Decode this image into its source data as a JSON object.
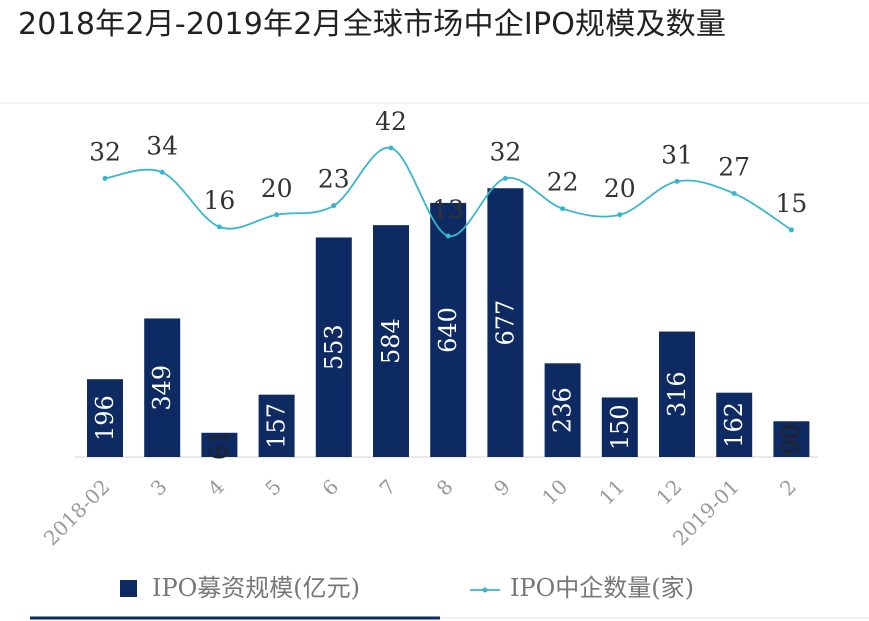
{
  "chart_data": {
    "type": "bar",
    "title": "2018年2月-2019年2月全球市场中企IPO规模及数量",
    "categories": [
      "2018-02",
      "3",
      "4",
      "5",
      "6",
      "7",
      "8",
      "9",
      "10",
      "11",
      "12",
      "2019-01",
      "2"
    ],
    "series": [
      {
        "name": "IPO募资规模(亿元)",
        "type": "bar",
        "values": [
          196,
          349,
          61,
          157,
          553,
          584,
          640,
          677,
          236,
          150,
          316,
          162,
          90
        ]
      },
      {
        "name": "IPO中企数量(家)",
        "type": "line",
        "values": [
          32,
          34,
          16,
          20,
          23,
          42,
          13,
          32,
          22,
          20,
          31,
          27,
          15
        ]
      }
    ],
    "bar_ylim": [
      0,
      700
    ],
    "line_ylim": [
      0,
      50
    ],
    "xlabel": "",
    "ylabel": "",
    "legend_position": "bottom",
    "grid": false
  },
  "colors": {
    "bar": "#0d2a63",
    "line": "#38b6cf",
    "axis": "#d0d0d0",
    "label": "#333333",
    "tick": "#999999"
  }
}
